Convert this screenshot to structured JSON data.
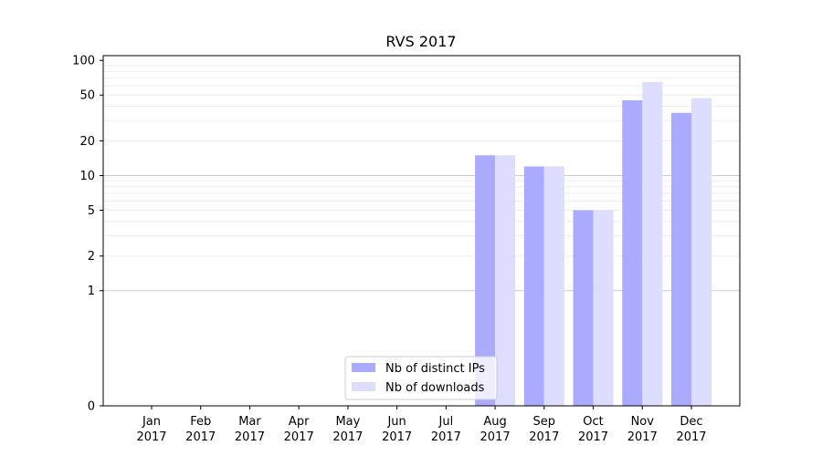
{
  "chart_data": {
    "type": "bar",
    "title": "RVS 2017",
    "xlabel": "",
    "ylabel": "",
    "scale": "symlog",
    "ylim": [
      0,
      110
    ],
    "yticks": [
      {
        "value": 0,
        "label": "0"
      },
      {
        "value": 1,
        "label": "1"
      },
      {
        "value": 2,
        "label": "2"
      },
      {
        "value": 5,
        "label": "5"
      },
      {
        "value": 10,
        "label": "10"
      },
      {
        "value": 20,
        "label": "20"
      },
      {
        "value": 50,
        "label": "50"
      },
      {
        "value": 100,
        "label": "100"
      }
    ],
    "categories": [
      {
        "month": "Jan",
        "year": "2017"
      },
      {
        "month": "Feb",
        "year": "2017"
      },
      {
        "month": "Mar",
        "year": "2017"
      },
      {
        "month": "Apr",
        "year": "2017"
      },
      {
        "month": "May",
        "year": "2017"
      },
      {
        "month": "Jun",
        "year": "2017"
      },
      {
        "month": "Jul",
        "year": "2017"
      },
      {
        "month": "Aug",
        "year": "2017"
      },
      {
        "month": "Sep",
        "year": "2017"
      },
      {
        "month": "Oct",
        "year": "2017"
      },
      {
        "month": "Nov",
        "year": "2017"
      },
      {
        "month": "Dec",
        "year": "2017"
      }
    ],
    "series": [
      {
        "name": "Nb of distinct IPs",
        "color": "#aaaaff",
        "values": [
          0,
          0,
          0,
          0,
          0,
          0,
          0,
          15,
          12,
          5,
          45,
          35
        ]
      },
      {
        "name": "Nb of downloads",
        "color": "#ddddff",
        "values": [
          0,
          0,
          0,
          0,
          0,
          0,
          0,
          15,
          12,
          5,
          65,
          47
        ]
      }
    ],
    "grid": true,
    "legend_position": "bottom-center"
  }
}
